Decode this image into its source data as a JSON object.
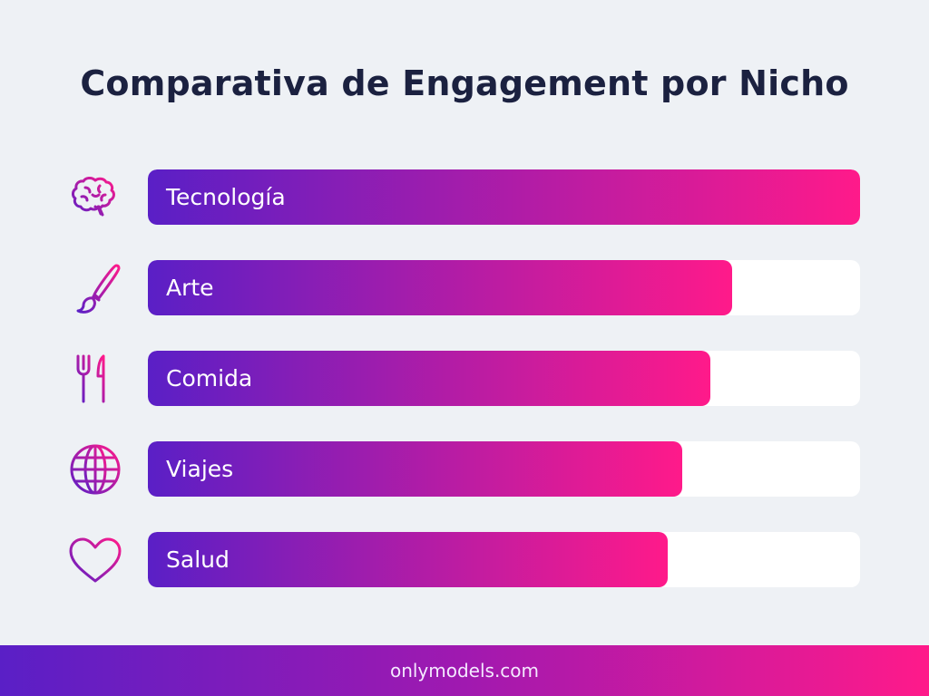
{
  "chart_data": {
    "type": "bar",
    "orientation": "horizontal",
    "title": "Comparativa de Engagement por Nicho",
    "categories": [
      "Tecnología",
      "Arte",
      "Comida",
      "Viajes",
      "Salud"
    ],
    "values": [
      100,
      82,
      79,
      75,
      73
    ],
    "xlim": [
      0,
      100
    ],
    "grid": false,
    "icons": [
      "brain-icon",
      "paintbrush-icon",
      "fork-knife-icon",
      "globe-icon",
      "heart-icon"
    ],
    "colors": {
      "gradient_start": "#5a1fc6",
      "gradient_end": "#ff1a8a",
      "track": "#ffffff",
      "background": "#eef1f5",
      "title": "#1b2140"
    }
  },
  "footer": {
    "text": "onlymodels.com"
  }
}
